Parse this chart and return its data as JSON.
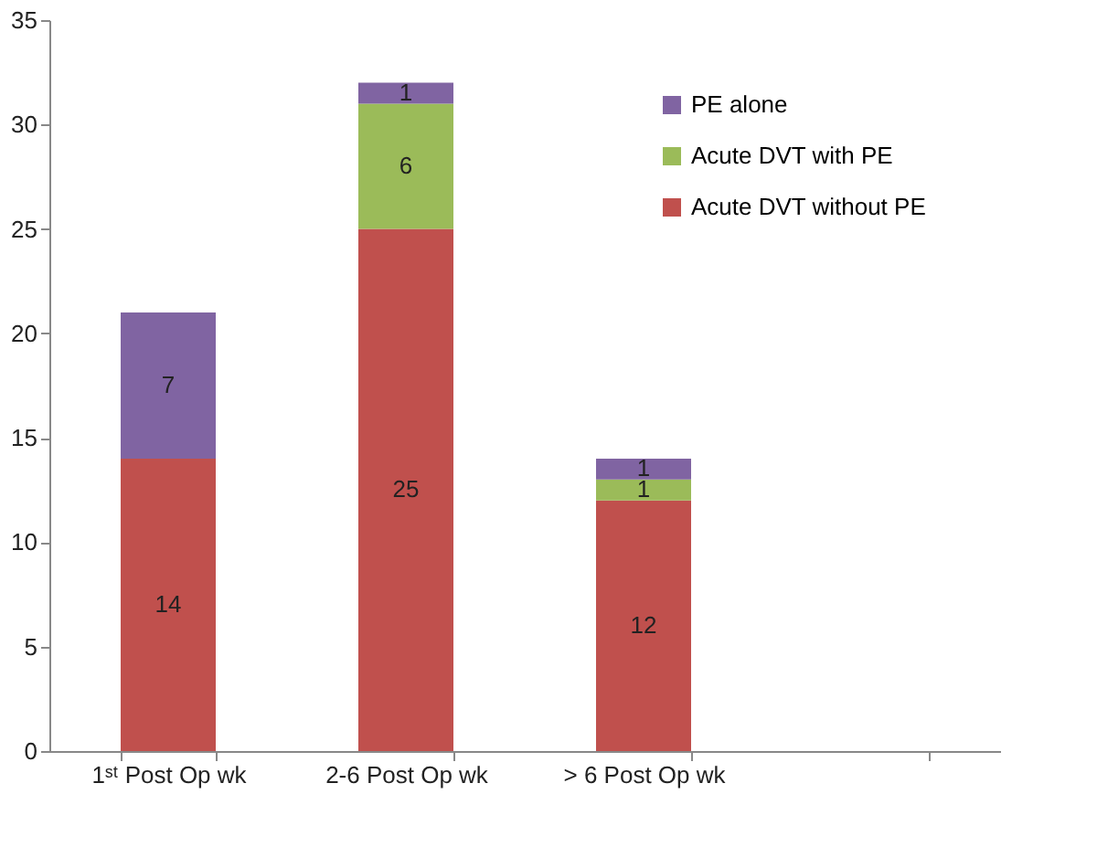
{
  "chart_data": {
    "type": "bar",
    "stacked": true,
    "data_labels": true,
    "legend": "top right",
    "grid": false,
    "categories": [
      "1ˢᵗ Post Op wk",
      "2-6 Post Op wk",
      "> 6 Post Op wk",
      null
    ],
    "ylim": [
      0,
      35
    ],
    "yticks": [
      0,
      5,
      10,
      15,
      20,
      25,
      30,
      35
    ],
    "series": [
      {
        "name": "Acute DVT without PE",
        "color": "#c0504d",
        "values": [
          14,
          25,
          12,
          null
        ]
      },
      {
        "name": "Acute DVT with PE",
        "color": "#9bbb59",
        "values": [
          null,
          6,
          1,
          null
        ]
      },
      {
        "name": "PE alone",
        "color": "#8064a2",
        "values": [
          7,
          1,
          1,
          null
        ]
      }
    ]
  }
}
